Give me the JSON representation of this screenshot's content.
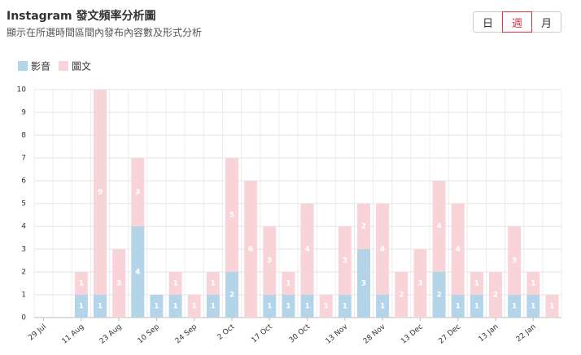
{
  "header": {
    "title": "Instagram 發文頻率分析圖",
    "subtitle": "顯示在所選時間區間內發布內容數及形式分析"
  },
  "controls": {
    "options": [
      "日",
      "週",
      "月"
    ],
    "selected": 1
  },
  "chart_data": {
    "type": "bar",
    "stacked": true,
    "grid": true,
    "categories": [
      "29 Jul",
      null,
      "11 Aug",
      null,
      "23 Aug",
      null,
      "10 Sep",
      null,
      "24 Sep",
      null,
      "2 Oct",
      null,
      "17 Oct",
      null,
      "30 Oct",
      null,
      "13 Nov",
      null,
      "28 Nov",
      null,
      "13 Dec",
      null,
      "27 Dec",
      null,
      "13 Jan",
      null,
      "22 Jan",
      null
    ],
    "series": [
      {
        "name": "影音",
        "color": "#b4d5e9",
        "values": [
          0,
          0,
          1,
          1,
          0,
          4,
          1,
          1,
          0,
          1,
          2,
          0,
          1,
          1,
          1,
          0,
          1,
          3,
          1,
          0,
          0,
          2,
          1,
          1,
          0,
          1,
          1,
          0
        ]
      },
      {
        "name": "圖文",
        "color": "#f8d4d9",
        "values": [
          0,
          0,
          1,
          9,
          3,
          3,
          0,
          1,
          1,
          1,
          5,
          6,
          3,
          1,
          4,
          1,
          3,
          2,
          4,
          2,
          3,
          4,
          4,
          1,
          2,
          3,
          1,
          1
        ]
      }
    ],
    "ylim": [
      0,
      10
    ],
    "yticks": [
      0,
      1,
      2,
      3,
      4,
      5,
      6,
      7,
      8,
      9,
      10
    ]
  }
}
